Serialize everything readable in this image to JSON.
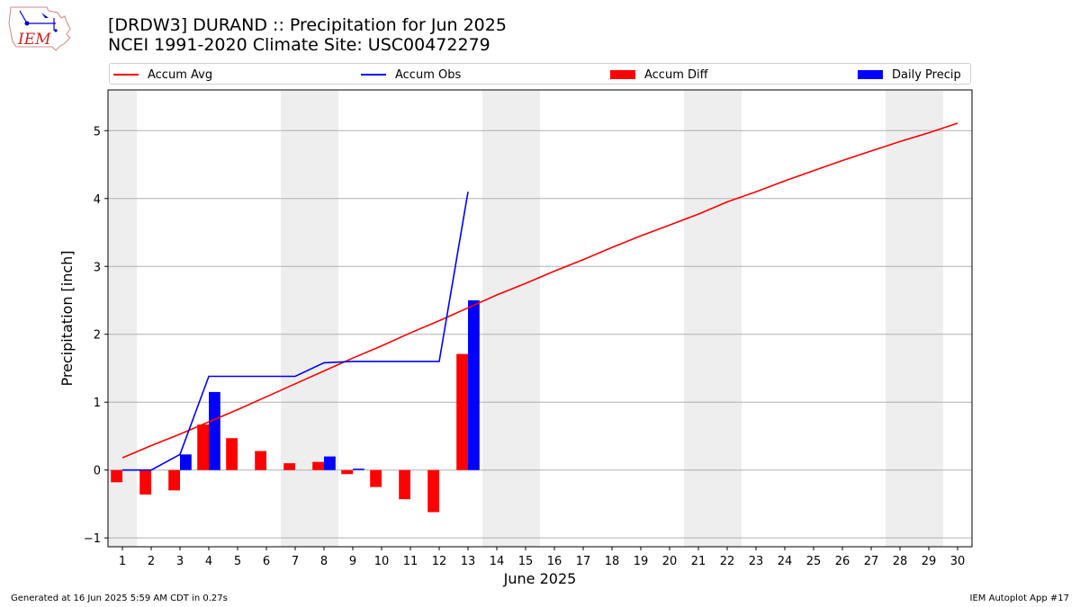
{
  "logo": {
    "text": "IEM"
  },
  "header": {
    "title": "[DRDW3] DURAND :: Precipitation for Jun 2025",
    "subtitle": "NCEI 1991-2020 Climate Site: USC00472279"
  },
  "legend": {
    "items": [
      {
        "label": "Accum Avg",
        "kind": "line",
        "color": "#ff0000"
      },
      {
        "label": "Accum Obs",
        "kind": "line",
        "color": "#0000ff"
      },
      {
        "label": "Accum Diff",
        "kind": "bar",
        "color": "#ff0000"
      },
      {
        "label": "Daily Precip",
        "kind": "bar",
        "color": "#0000ff"
      }
    ],
    "placement": "top"
  },
  "footer": {
    "left": "Generated at 16 Jun 2025 5:59 AM CDT in 0.27s",
    "right": "IEM Autoplot App #17"
  },
  "chart_data": {
    "type": "bar",
    "title": "[DRDW3] DURAND :: Precipitation for Jun 2025",
    "xlabel": "June 2025",
    "ylabel": "Precipitation [inch]",
    "xlim": [
      0.5,
      30.5
    ],
    "ylim": [
      -1.13,
      5.6
    ],
    "x_ticks": [
      1,
      2,
      3,
      4,
      5,
      6,
      7,
      8,
      9,
      10,
      11,
      12,
      13,
      14,
      15,
      16,
      17,
      18,
      19,
      20,
      21,
      22,
      23,
      24,
      25,
      26,
      27,
      28,
      29,
      30
    ],
    "y_ticks": [
      -1,
      0,
      1,
      2,
      3,
      4,
      5
    ],
    "grid": "horizontal",
    "weekend_shading": [
      [
        0.5,
        1.5
      ],
      [
        6.5,
        8.5
      ],
      [
        13.5,
        15.5
      ],
      [
        20.5,
        22.5
      ],
      [
        27.5,
        29.5
      ]
    ],
    "weekend_color": "#eeeeee",
    "series": [
      {
        "name": "Accum Avg",
        "type": "line",
        "color": "#ff0000",
        "x": [
          1,
          2,
          3,
          4,
          5,
          6,
          7,
          8,
          9,
          10,
          11,
          12,
          13,
          14,
          15,
          16,
          17,
          18,
          19,
          20,
          21,
          22,
          23,
          24,
          25,
          26,
          27,
          28,
          29,
          30
        ],
        "values": [
          0.18,
          0.36,
          0.53,
          0.71,
          0.89,
          1.08,
          1.27,
          1.46,
          1.65,
          1.83,
          2.02,
          2.2,
          2.39,
          2.58,
          2.75,
          2.93,
          3.1,
          3.28,
          3.45,
          3.61,
          3.77,
          3.95,
          4.1,
          4.26,
          4.41,
          4.56,
          4.7,
          4.84,
          4.97,
          5.11
        ]
      },
      {
        "name": "Accum Obs",
        "type": "line",
        "color": "#0000ff",
        "x": [
          1,
          2,
          3,
          4,
          5,
          6,
          7,
          8,
          9,
          10,
          11,
          12,
          13
        ],
        "values": [
          0.0,
          0.0,
          0.23,
          1.38,
          1.38,
          1.38,
          1.38,
          1.58,
          1.6,
          1.6,
          1.6,
          1.6,
          4.1
        ]
      },
      {
        "name": "Accum Diff",
        "type": "bar",
        "color": "#ff0000",
        "x": [
          1,
          2,
          3,
          4,
          5,
          6,
          7,
          8,
          9,
          10,
          11,
          12,
          13
        ],
        "values": [
          -0.18,
          -0.36,
          -0.3,
          0.67,
          0.47,
          0.28,
          0.1,
          0.12,
          -0.06,
          -0.25,
          -0.43,
          -0.62,
          1.71
        ]
      },
      {
        "name": "Daily Precip",
        "type": "bar",
        "color": "#0000ff",
        "x": [
          1,
          2,
          3,
          4,
          5,
          6,
          7,
          8,
          9,
          10,
          11,
          12,
          13
        ],
        "values": [
          0.0,
          0.0,
          0.23,
          1.15,
          0.0,
          0.0,
          0.0,
          0.2,
          0.02,
          0.0,
          0.0,
          0.0,
          2.5
        ]
      }
    ]
  }
}
